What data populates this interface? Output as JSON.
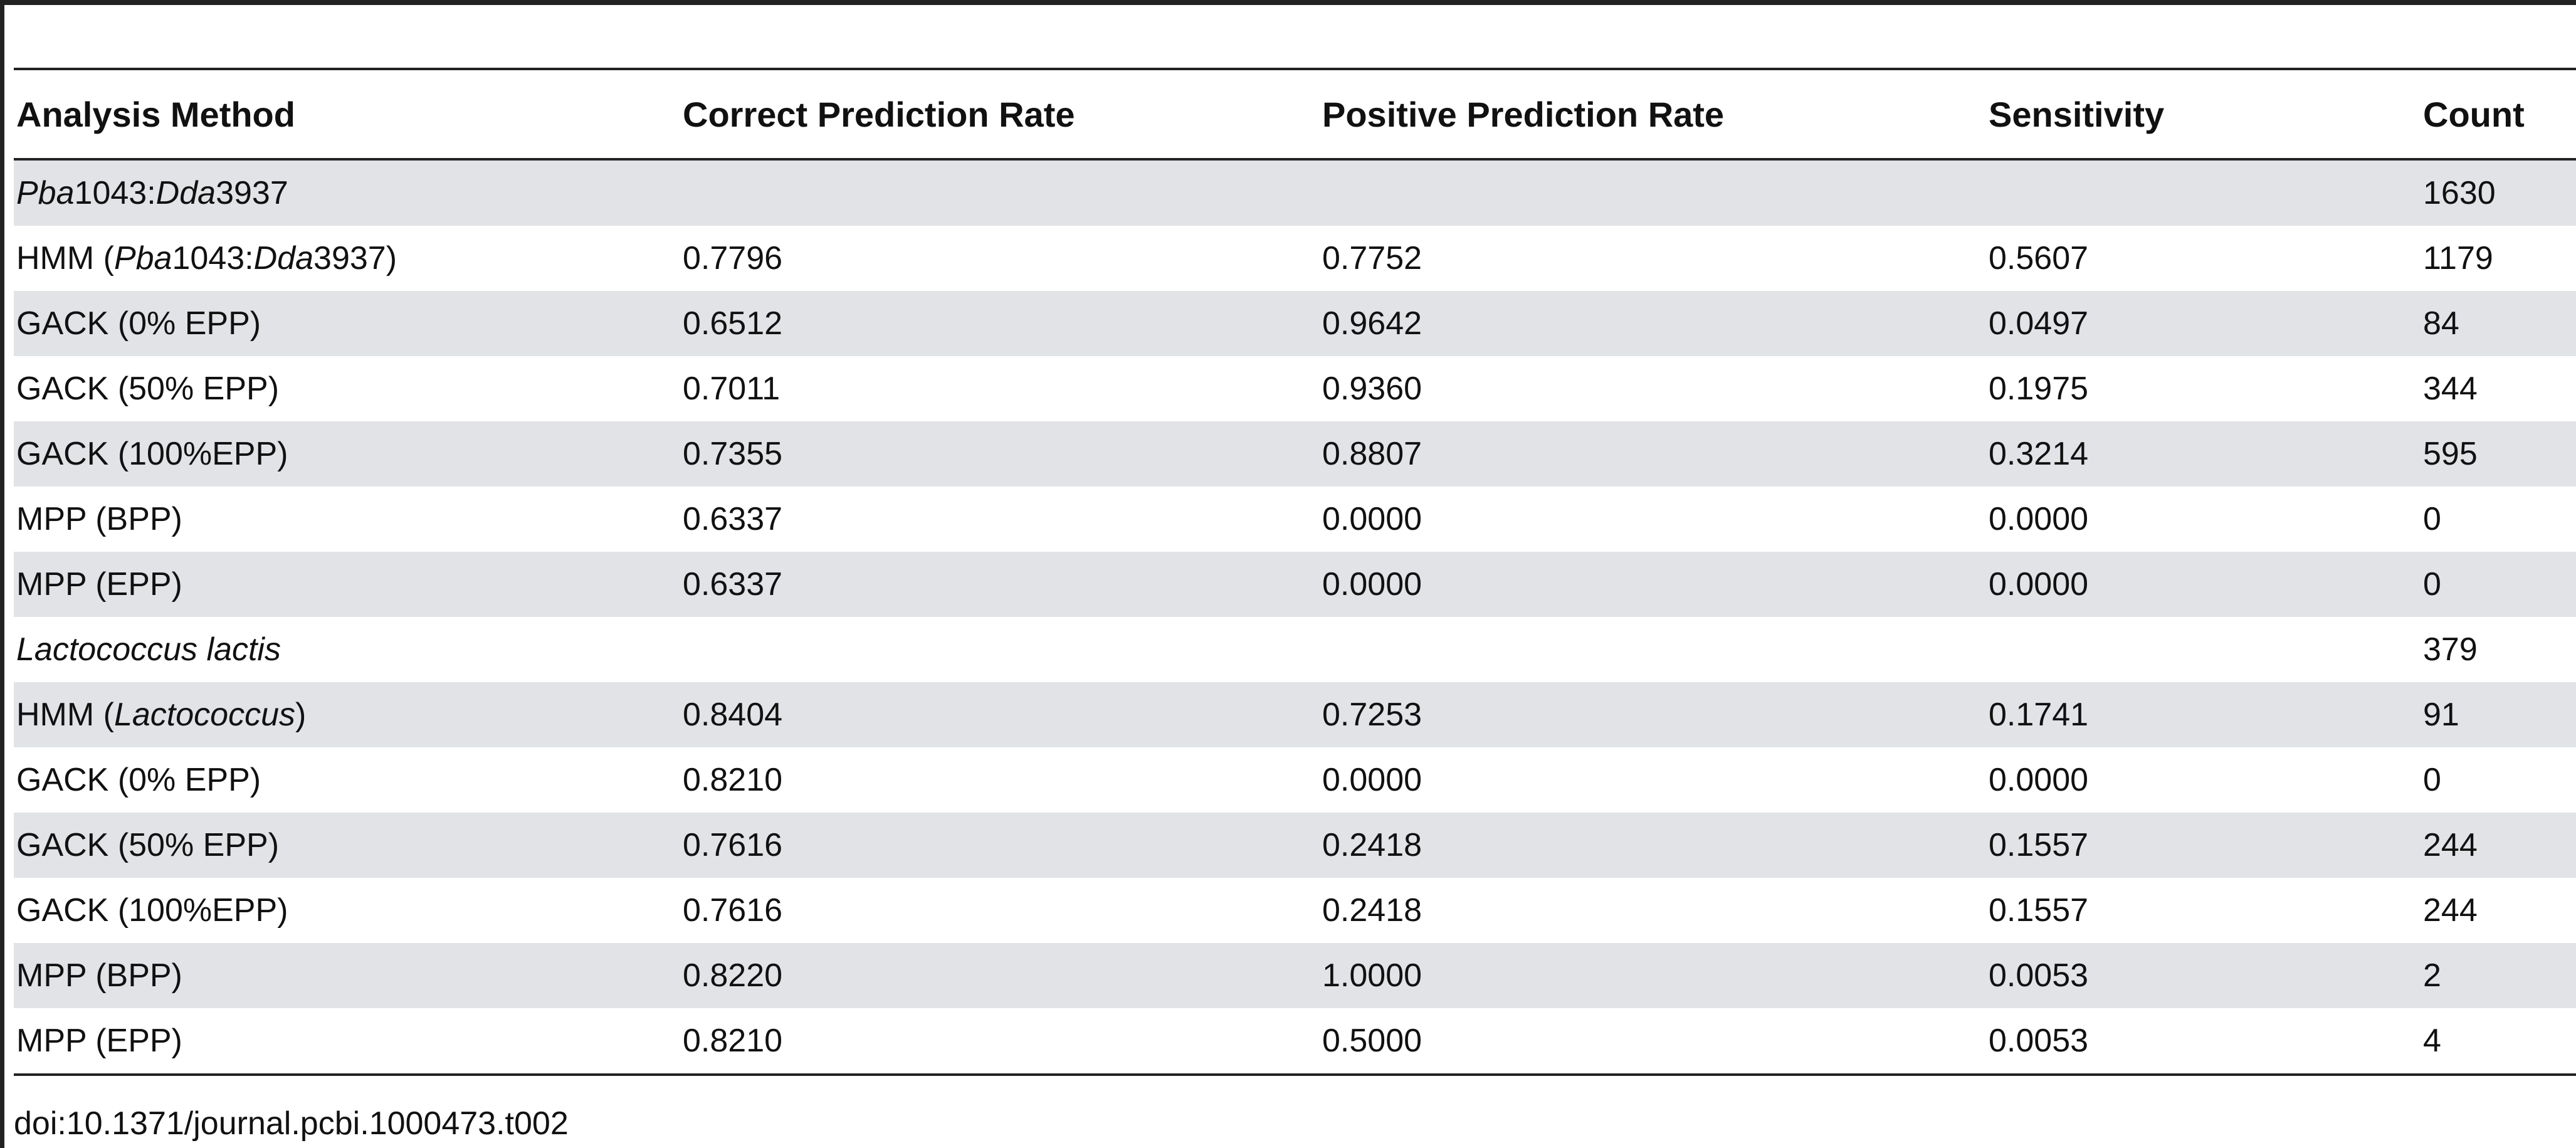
{
  "table": {
    "headers": [
      "Analysis Method",
      "Correct Prediction Rate",
      "Positive Prediction Rate",
      "Sensitivity",
      "Count"
    ],
    "rows": [
      {
        "parts": [
          {
            "t": "Pba",
            "i": true
          },
          {
            "t": "1043:",
            "i": false
          },
          {
            "t": "Dda",
            "i": true
          },
          {
            "t": "3937",
            "i": false
          }
        ],
        "correct": "",
        "positive": "",
        "sensitivity": "",
        "count": "1630",
        "shaded": true
      },
      {
        "parts": [
          {
            "t": "HMM (",
            "i": false
          },
          {
            "t": "Pba",
            "i": true
          },
          {
            "t": "1043:",
            "i": false
          },
          {
            "t": "Dda",
            "i": true
          },
          {
            "t": "3937)",
            "i": false
          }
        ],
        "correct": "0.7796",
        "positive": "0.7752",
        "sensitivity": "0.5607",
        "count": "1179",
        "shaded": false
      },
      {
        "parts": [
          {
            "t": "GACK (0% EPP)",
            "i": false
          }
        ],
        "correct": "0.6512",
        "positive": "0.9642",
        "sensitivity": "0.0497",
        "count": "84",
        "shaded": true
      },
      {
        "parts": [
          {
            "t": "GACK (50% EPP)",
            "i": false
          }
        ],
        "correct": "0.7011",
        "positive": "0.9360",
        "sensitivity": "0.1975",
        "count": "344",
        "shaded": false
      },
      {
        "parts": [
          {
            "t": "GACK (100%EPP)",
            "i": false
          }
        ],
        "correct": "0.7355",
        "positive": "0.8807",
        "sensitivity": "0.3214",
        "count": "595",
        "shaded": true
      },
      {
        "parts": [
          {
            "t": "MPP (BPP)",
            "i": false
          }
        ],
        "correct": "0.6337",
        "positive": "0.0000",
        "sensitivity": "0.0000",
        "count": "0",
        "shaded": false
      },
      {
        "parts": [
          {
            "t": "MPP (EPP)",
            "i": false
          }
        ],
        "correct": "0.6337",
        "positive": "0.0000",
        "sensitivity": "0.0000",
        "count": "0",
        "shaded": true
      },
      {
        "parts": [
          {
            "t": "Lactococcus lactis",
            "i": true
          }
        ],
        "correct": "",
        "positive": "",
        "sensitivity": "",
        "count": "379",
        "shaded": false
      },
      {
        "parts": [
          {
            "t": "HMM (",
            "i": false
          },
          {
            "t": "Lactococcus",
            "i": true
          },
          {
            "t": ")",
            "i": false
          }
        ],
        "correct": "0.8404",
        "positive": "0.7253",
        "sensitivity": "0.1741",
        "count": "91",
        "shaded": true
      },
      {
        "parts": [
          {
            "t": "GACK (0% EPP)",
            "i": false
          }
        ],
        "correct": "0.8210",
        "positive": "0.0000",
        "sensitivity": "0.0000",
        "count": "0",
        "shaded": false
      },
      {
        "parts": [
          {
            "t": "GACK (50% EPP)",
            "i": false
          }
        ],
        "correct": "0.7616",
        "positive": "0.2418",
        "sensitivity": "0.1557",
        "count": "244",
        "shaded": true
      },
      {
        "parts": [
          {
            "t": "GACK (100%EPP)",
            "i": false
          }
        ],
        "correct": "0.7616",
        "positive": "0.2418",
        "sensitivity": "0.1557",
        "count": "244",
        "shaded": false
      },
      {
        "parts": [
          {
            "t": "MPP (BPP)",
            "i": false
          }
        ],
        "correct": "0.8220",
        "positive": "1.0000",
        "sensitivity": "0.0053",
        "count": "2",
        "shaded": true
      },
      {
        "parts": [
          {
            "t": "MPP (EPP)",
            "i": false
          }
        ],
        "correct": "0.8210",
        "positive": "0.5000",
        "sensitivity": "0.0053",
        "count": "4",
        "shaded": false
      }
    ]
  },
  "footer": {
    "doi": "doi:10.1371/journal.pcbi.1000473.t002"
  },
  "colors": {
    "shade": "#e1e3e6",
    "rule": "#222222",
    "text": "#111111"
  }
}
